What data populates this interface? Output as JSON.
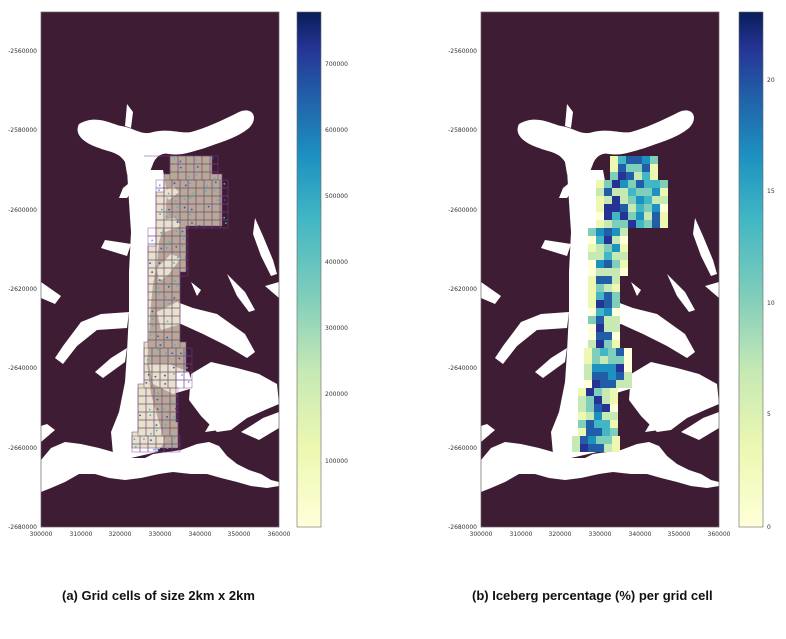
{
  "panel_a": {
    "caption": "(a) Grid cells of size 2km x 2km",
    "y_ticks": [
      "-2560000",
      "-2580000",
      "-2600000",
      "-2620000",
      "-2640000",
      "-2660000",
      "-2680000"
    ],
    "x_ticks": [
      "300000",
      "310000",
      "320000",
      "330000",
      "340000",
      "350000",
      "360000"
    ],
    "colorbar_ticks": [
      "700000",
      "600000",
      "500000",
      "400000",
      "300000",
      "200000",
      "100000"
    ]
  },
  "panel_b": {
    "caption": "(b) Iceberg percentage (%) per grid cell",
    "y_ticks": [
      "-2560000",
      "-2580000",
      "-2600000",
      "-2620000",
      "-2640000",
      "-2660000",
      "-2680000"
    ],
    "x_ticks": [
      "300000",
      "310000",
      "320000",
      "330000",
      "340000",
      "350000",
      "360000"
    ],
    "colorbar_ticks": [
      "20",
      "15",
      "10",
      "5",
      "0"
    ]
  },
  "colors": {
    "land": "#3e1c33",
    "water": "#ffffff",
    "grid_line": "#7b3f8f",
    "colormap": "YlGnBu"
  }
}
